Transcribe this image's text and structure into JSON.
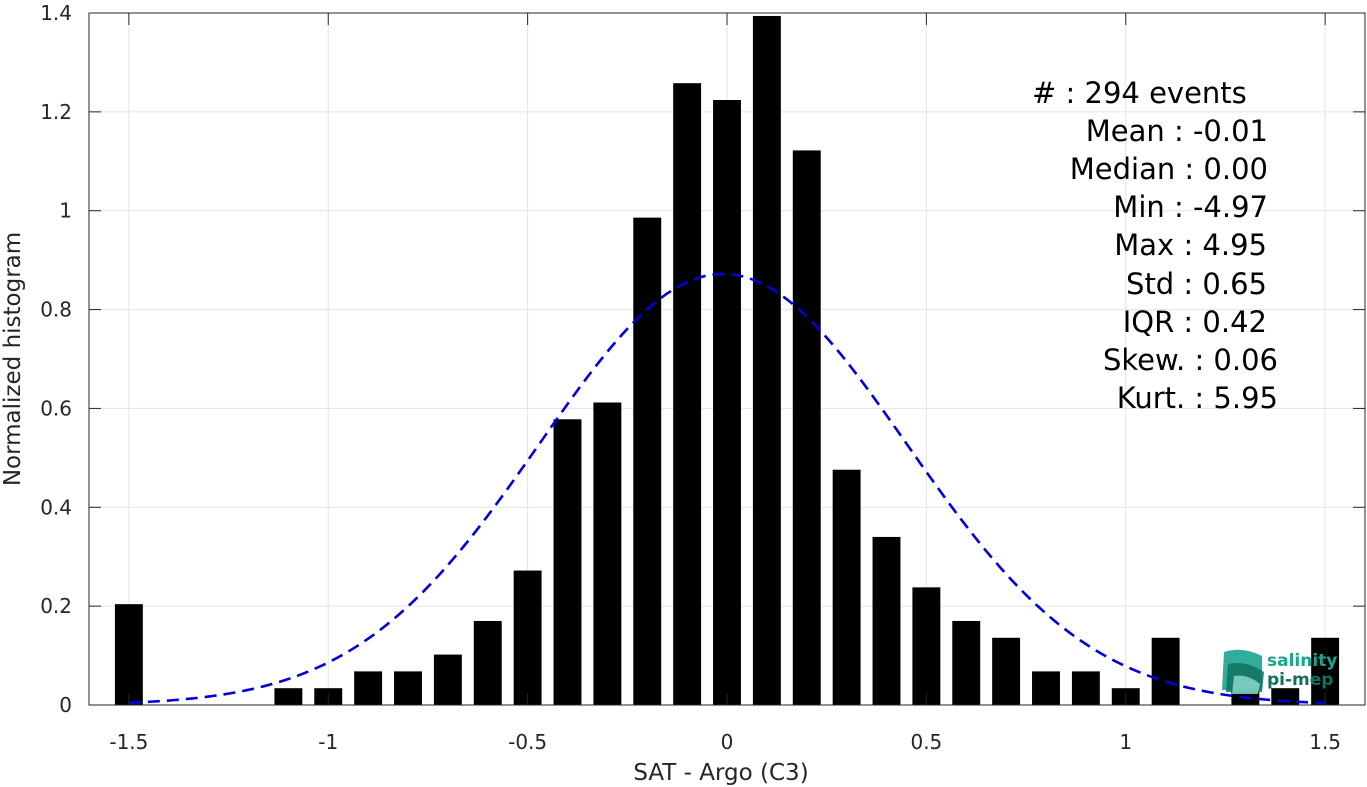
{
  "chart_data": {
    "type": "bar",
    "xlabel": "SAT - Argo (C3)",
    "ylabel": "Normalized histogram",
    "xlim": [
      -1.6,
      1.6
    ],
    "ylim": [
      0,
      1.4
    ],
    "xticks": [
      -1.5,
      -1,
      -0.5,
      0,
      0.5,
      1,
      1.5
    ],
    "xtick_labels": [
      "-1.5",
      "-1",
      "-0.5",
      "0",
      "0.5",
      "1",
      "1.5"
    ],
    "yticks": [
      0,
      0.2,
      0.4,
      0.6,
      0.8,
      1,
      1.2,
      1.4
    ],
    "ytick_labels": [
      "0",
      "0.2",
      "0.4",
      "0.6",
      "0.8",
      "1",
      "1.2",
      "1.4"
    ],
    "grid": true,
    "bar_width": 0.07,
    "bar_color": "#000000",
    "bars": {
      "x": [
        -1.5,
        -1.1,
        -1.0,
        -0.9,
        -0.8,
        -0.7,
        -0.6,
        -0.5,
        -0.4,
        -0.3,
        -0.2,
        -0.1,
        0.0,
        0.1,
        0.2,
        0.3,
        0.4,
        0.5,
        0.6,
        0.7,
        0.8,
        0.9,
        1.0,
        1.1,
        1.3,
        1.4,
        1.5
      ],
      "values": [
        0.204,
        0.034,
        0.034,
        0.068,
        0.068,
        0.102,
        0.17,
        0.272,
        0.578,
        0.612,
        0.986,
        1.258,
        1.224,
        1.394,
        1.122,
        0.476,
        0.34,
        0.238,
        0.17,
        0.136,
        0.068,
        0.068,
        0.034,
        0.136,
        0.034,
        0.034,
        0.136
      ]
    },
    "gaussian_fit": {
      "mean": -0.01,
      "std": 0.46,
      "peak": 0.872,
      "x_range": [
        -1.5,
        1.5
      ],
      "color": "#0000dd",
      "style": "dashed"
    },
    "annotations": [
      {
        "label": "#  : 294 events"
      },
      {
        "label": "Mean : -0.01"
      },
      {
        "label": "Median : 0.00"
      },
      {
        "label": "Min : -4.97"
      },
      {
        "label": "Max : 4.95"
      },
      {
        "label": "Std : 0.65"
      },
      {
        "label": "IQR : 0.42"
      },
      {
        "label": "Skew. : 0.06"
      },
      {
        "label": "Kurt. : 5.95"
      }
    ]
  },
  "logo": {
    "line1": "salinity",
    "line2": "pi-mep",
    "color": "#1aa58f",
    "dark_color": "#13705f"
  }
}
